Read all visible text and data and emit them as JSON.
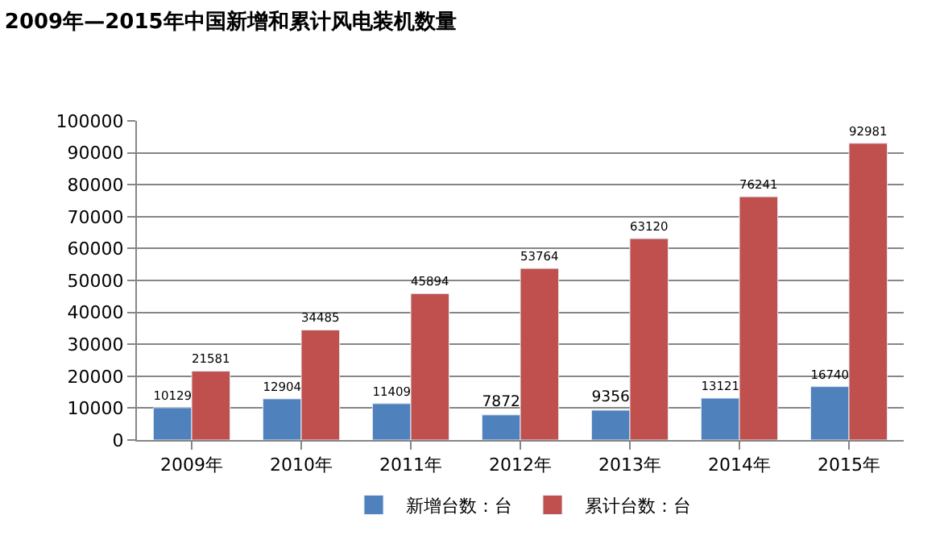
{
  "chart_data": {
    "type": "bar",
    "title": "2009年—2015年中国新增和累计风电装机数量",
    "categories": [
      "2009年",
      "2010年",
      "2011年",
      "2012年",
      "2013年",
      "2014年",
      "2015年"
    ],
    "series": [
      {
        "name": "新增台数：台",
        "color": "#4f81bd",
        "values": [
          10129,
          12904,
          11409,
          7872,
          9356,
          13121,
          16740
        ]
      },
      {
        "name": "累计台数：台",
        "color": "#c0504d",
        "values": [
          21581,
          34485,
          45894,
          53764,
          63120,
          76241,
          92981
        ]
      }
    ],
    "ylim": [
      0,
      100000
    ],
    "yticks": [
      0,
      10000,
      20000,
      30000,
      40000,
      50000,
      60000,
      70000,
      80000,
      90000,
      100000
    ],
    "grid": "y",
    "legend": "bottom",
    "data_labels": true
  }
}
